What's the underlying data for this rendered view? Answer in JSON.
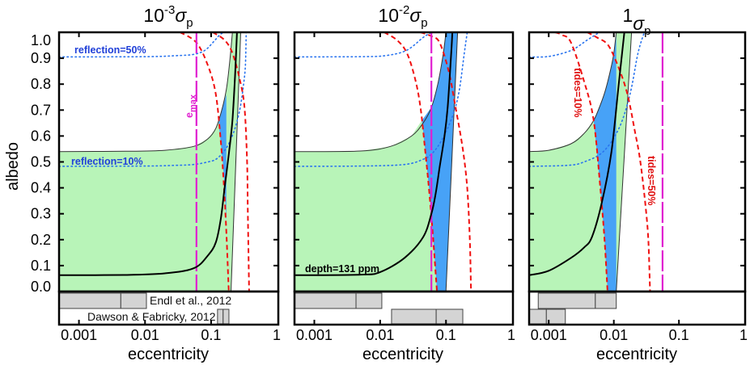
{
  "colors": {
    "green_region": "#b8f4b8",
    "blue_region": "#47a2f7",
    "tides": "#f01010",
    "reflection": "#2a74ef",
    "e_max": "#e020d0",
    "depth": "#000000",
    "bar_fill": "#d4d4d4"
  },
  "chart_data": [
    {
      "type": "line",
      "title": {
        "base": "10",
        "exp": "-3",
        "symbol": "σ",
        "sub": "p"
      },
      "xlabel": "eccentricity",
      "ylabel": "albedo",
      "xscale": "log",
      "xlim": [
        0.0005,
        1.04
      ],
      "ylim": [
        0,
        1
      ],
      "xticks": [
        0.001,
        0.01,
        0.1,
        1
      ],
      "xtick_labels": [
        "0.001",
        "0.01",
        "0.1",
        "1"
      ],
      "yticks": [
        1.0,
        0.9,
        0.8,
        0.7,
        0.6,
        0.5,
        0.4,
        0.3,
        0.2,
        0.1,
        0.0
      ],
      "ytick_labels": [
        "1.0",
        "0.9",
        "0.8",
        "0.7",
        "0.6",
        "0.5",
        "0.4",
        "0.3",
        "0.2",
        "0.1",
        "0.0"
      ],
      "green_region": [
        [
          0.0005,
          0
        ],
        [
          0.0005,
          0.54
        ],
        [
          0.005,
          0.541
        ],
        [
          0.02,
          0.545
        ],
        [
          0.055,
          0.56
        ],
        [
          0.09,
          0.59
        ],
        [
          0.118,
          0.63
        ],
        [
          0.145,
          0.7
        ],
        [
          0.17,
          0.78
        ],
        [
          0.19,
          0.88
        ],
        [
          0.21,
          1.0
        ],
        [
          0.28,
          1.0
        ],
        [
          0.2,
          0
        ]
      ],
      "blue_region": [
        [
          0.13,
          0.65
        ],
        [
          0.145,
          0.7
        ],
        [
          0.17,
          0.76
        ],
        [
          0.17,
          0.27
        ],
        [
          0.16,
          0.4
        ],
        [
          0.15,
          0.5
        ]
      ],
      "upper_bound": [
        [
          0.0005,
          0.54
        ],
        [
          0.005,
          0.541
        ],
        [
          0.02,
          0.545
        ],
        [
          0.055,
          0.56
        ],
        [
          0.09,
          0.59
        ],
        [
          0.118,
          0.63
        ],
        [
          0.145,
          0.7
        ],
        [
          0.17,
          0.78
        ],
        [
          0.19,
          0.88
        ],
        [
          0.21,
          1.0
        ]
      ],
      "right_bound": [
        [
          0.2,
          0
        ],
        [
          0.28,
          1.0
        ]
      ],
      "depth_curve": [
        [
          0.0005,
          0.063
        ],
        [
          0.005,
          0.064
        ],
        [
          0.02,
          0.07
        ],
        [
          0.055,
          0.09
        ],
        [
          0.09,
          0.14
        ],
        [
          0.118,
          0.19
        ],
        [
          0.14,
          0.28
        ],
        [
          0.16,
          0.4
        ],
        [
          0.185,
          0.53
        ],
        [
          0.21,
          0.66
        ],
        [
          0.23,
          0.83
        ],
        [
          0.246,
          1.0
        ]
      ],
      "tides_10": [
        [
          0.034,
          1.0
        ],
        [
          0.06,
          0.96
        ],
        [
          0.09,
          0.87
        ],
        [
          0.118,
          0.76
        ],
        [
          0.14,
          0.58
        ],
        [
          0.157,
          0.4
        ],
        [
          0.172,
          0.2
        ],
        [
          0.185,
          0
        ]
      ],
      "tides_50": [
        [
          0.106,
          1.0
        ],
        [
          0.16,
          0.97
        ],
        [
          0.21,
          0.92
        ],
        [
          0.27,
          0.82
        ],
        [
          0.32,
          0.71
        ],
        [
          0.35,
          0.5
        ],
        [
          0.36,
          0.29
        ],
        [
          0.376,
          0
        ]
      ],
      "reflection_50": [
        [
          0.0005,
          0.905
        ],
        [
          0.01,
          0.906
        ],
        [
          0.03,
          0.91
        ],
        [
          0.055,
          0.915
        ],
        [
          0.08,
          0.93
        ],
        [
          0.106,
          0.96
        ],
        [
          0.135,
          0.99
        ],
        [
          0.157,
          1.0
        ]
      ],
      "reflection_10": [
        [
          0.0005,
          0.483
        ],
        [
          0.01,
          0.484
        ],
        [
          0.03,
          0.487
        ],
        [
          0.055,
          0.49
        ],
        [
          0.09,
          0.5
        ],
        [
          0.118,
          0.51
        ],
        [
          0.15,
          0.535
        ],
        [
          0.185,
          0.57
        ],
        [
          0.23,
          0.63
        ],
        [
          0.276,
          0.71
        ],
        [
          0.31,
          0.8
        ],
        [
          0.33,
          0.87
        ],
        [
          0.34,
          1.0
        ]
      ],
      "e_max": 0.06,
      "annotations": {
        "reflection_50": "reflection=50%",
        "reflection_10": "reflection=10%",
        "e_max": "e",
        "e_max_sub": "max"
      },
      "bars": {
        "endl": {
          "label": "Endl et al., 2012",
          "segments": [
            [
              0.0005,
              0.0043
            ],
            [
              0.0043,
              0.0105
            ]
          ]
        },
        "dawson": {
          "label": "Dawson & Fabricky, 2012",
          "segments": [
            [
              0.125,
              0.152
            ],
            [
              0.152,
              0.186
            ]
          ]
        }
      }
    },
    {
      "type": "line",
      "title": {
        "base": "10",
        "exp": "-2",
        "symbol": "σ",
        "sub": "p"
      },
      "xlabel": "eccentricity",
      "xscale": "log",
      "xlim": [
        0.0005,
        1.04
      ],
      "ylim": [
        0,
        1
      ],
      "xticks": [
        0.001,
        0.01,
        0.1,
        1
      ],
      "xtick_labels": [
        "0.001",
        "0.01",
        "0.1",
        "1"
      ],
      "green_region": [
        [
          0.0005,
          0
        ],
        [
          0.0005,
          0.54
        ],
        [
          0.005,
          0.542
        ],
        [
          0.0145,
          0.56
        ],
        [
          0.03,
          0.6
        ],
        [
          0.043,
          0.66
        ],
        [
          0.048,
          0.55
        ],
        [
          0.055,
          0.4
        ],
        [
          0.064,
          0.2
        ],
        [
          0.073,
          0
        ]
      ],
      "blue_region": [
        [
          0.043,
          0.66
        ],
        [
          0.06,
          0.71
        ],
        [
          0.075,
          0.8
        ],
        [
          0.09,
          0.91
        ],
        [
          0.1,
          1.0
        ],
        [
          0.15,
          1.0
        ],
        [
          0.1,
          0
        ],
        [
          0.073,
          0
        ],
        [
          0.064,
          0.2
        ],
        [
          0.055,
          0.4
        ],
        [
          0.048,
          0.55
        ]
      ],
      "upper_bound": [
        [
          0.0005,
          0.54
        ],
        [
          0.005,
          0.542
        ],
        [
          0.0145,
          0.56
        ],
        [
          0.03,
          0.6
        ],
        [
          0.045,
          0.65
        ],
        [
          0.06,
          0.71
        ],
        [
          0.075,
          0.8
        ],
        [
          0.09,
          0.91
        ],
        [
          0.1,
          1.0
        ]
      ],
      "right_bound": [
        [
          0.1,
          0
        ],
        [
          0.15,
          1.0
        ]
      ],
      "depth_curve": [
        [
          0.0005,
          0.063
        ],
        [
          0.005,
          0.065
        ],
        [
          0.01,
          0.075
        ],
        [
          0.0235,
          0.13
        ],
        [
          0.045,
          0.21
        ],
        [
          0.06,
          0.3
        ],
        [
          0.07,
          0.38
        ],
        [
          0.08,
          0.48
        ],
        [
          0.095,
          0.6
        ],
        [
          0.106,
          0.71
        ],
        [
          0.12,
          0.92
        ],
        [
          0.125,
          1.0
        ]
      ],
      "tides_10": [
        [
          0.0115,
          1.0
        ],
        [
          0.018,
          0.97
        ],
        [
          0.0255,
          0.92
        ],
        [
          0.034,
          0.82
        ],
        [
          0.041,
          0.71
        ],
        [
          0.048,
          0.55
        ],
        [
          0.055,
          0.4
        ],
        [
          0.064,
          0.2
        ],
        [
          0.073,
          0
        ]
      ],
      "tides_50": [
        [
          0.041,
          1.0
        ],
        [
          0.06,
          0.985
        ],
        [
          0.08,
          0.96
        ],
        [
          0.11,
          0.85
        ],
        [
          0.14,
          0.71
        ],
        [
          0.18,
          0.55
        ],
        [
          0.21,
          0.4
        ],
        [
          0.23,
          0.2
        ],
        [
          0.24,
          0
        ]
      ],
      "reflection_50": [
        [
          0.0005,
          0.905
        ],
        [
          0.005,
          0.906
        ],
        [
          0.012,
          0.91
        ],
        [
          0.025,
          0.93
        ],
        [
          0.045,
          0.98
        ],
        [
          0.06,
          1.0
        ]
      ],
      "reflection_10": [
        [
          0.0005,
          0.483
        ],
        [
          0.005,
          0.484
        ],
        [
          0.0235,
          0.49
        ],
        [
          0.045,
          0.51
        ],
        [
          0.06,
          0.53
        ],
        [
          0.08,
          0.57
        ],
        [
          0.106,
          0.63
        ],
        [
          0.135,
          0.7
        ],
        [
          0.16,
          0.78
        ],
        [
          0.19,
          0.92
        ],
        [
          0.21,
          1.0
        ]
      ],
      "e_max": 0.06,
      "annotations": {
        "depth": "depth=131 ppm"
      },
      "bars": {
        "endl": {
          "segments": [
            [
              0.0005,
              0.0043
            ],
            [
              0.0043,
              0.0106
            ]
          ]
        },
        "dawson": {
          "segments": [
            [
              0.0149,
              0.071
            ],
            [
              0.071,
              0.18
            ]
          ]
        }
      }
    },
    {
      "type": "line",
      "title": {
        "base": "1",
        "exp": "",
        "symbol": "σ",
        "sub": "p"
      },
      "xlabel": "eccentricity",
      "xscale": "log",
      "xlim": [
        0.0005,
        1.04
      ],
      "ylim": [
        0,
        1
      ],
      "xticks": [
        0.001,
        0.01,
        0.1,
        1
      ],
      "xtick_labels": [
        "0.001",
        "0.01",
        "0.1",
        "1"
      ],
      "green_region": [
        [
          0.0005,
          0
        ],
        [
          0.0005,
          0.54
        ],
        [
          0.001,
          0.545
        ],
        [
          0.0022,
          0.57
        ],
        [
          0.0035,
          0.61
        ],
        [
          0.0049,
          0.66
        ],
        [
          0.0062,
          0.72
        ],
        [
          0.0075,
          0.78
        ],
        [
          0.009,
          0.86
        ],
        [
          0.01,
          0.92
        ],
        [
          0.0109,
          1.0
        ],
        [
          0.0187,
          1.0
        ],
        [
          0.0109,
          0
        ]
      ],
      "blue_region": [
        [
          0.0049,
          0.66
        ],
        [
          0.0062,
          0.72
        ],
        [
          0.0075,
          0.78
        ],
        [
          0.009,
          0.86
        ],
        [
          0.01,
          0.92
        ],
        [
          0.0109,
          1.0
        ],
        [
          0.0109,
          0
        ],
        [
          0.008,
          0
        ],
        [
          0.0072,
          0.2
        ],
        [
          0.0062,
          0.4
        ]
      ],
      "upper_bound": [
        [
          0.0005,
          0.54
        ],
        [
          0.001,
          0.545
        ],
        [
          0.0022,
          0.57
        ],
        [
          0.0035,
          0.61
        ],
        [
          0.0049,
          0.66
        ],
        [
          0.0062,
          0.72
        ],
        [
          0.0075,
          0.78
        ],
        [
          0.009,
          0.86
        ],
        [
          0.01,
          0.92
        ],
        [
          0.0109,
          1.0
        ]
      ],
      "right_bound": [
        [
          0.0109,
          0
        ],
        [
          0.0187,
          1.0
        ]
      ],
      "depth_curve": [
        [
          0.0005,
          0.063
        ],
        [
          0.001,
          0.08
        ],
        [
          0.0022,
          0.13
        ],
        [
          0.0035,
          0.17
        ],
        [
          0.0046,
          0.21
        ],
        [
          0.0065,
          0.34
        ],
        [
          0.0092,
          0.54
        ],
        [
          0.012,
          0.81
        ],
        [
          0.0145,
          1.0
        ]
      ],
      "tides_10": [
        [
          0.00125,
          1.0
        ],
        [
          0.0016,
          0.99
        ],
        [
          0.0022,
          0.96
        ],
        [
          0.0035,
          0.81
        ],
        [
          0.0049,
          0.66
        ],
        [
          0.0062,
          0.4
        ],
        [
          0.0072,
          0.2
        ],
        [
          0.008,
          0
        ]
      ],
      "tides_50": [
        [
          0.0039,
          1.0
        ],
        [
          0.0055,
          0.98
        ],
        [
          0.0082,
          0.95
        ],
        [
          0.012,
          0.86
        ],
        [
          0.0162,
          0.76
        ],
        [
          0.021,
          0.62
        ],
        [
          0.0256,
          0.5
        ],
        [
          0.031,
          0.32
        ],
        [
          0.034,
          0.19
        ],
        [
          0.036,
          0
        ]
      ],
      "reflection_50": [
        [
          0.0005,
          0.905
        ],
        [
          0.001,
          0.907
        ],
        [
          0.0022,
          0.93
        ],
        [
          0.0039,
          0.97
        ],
        [
          0.006,
          1.0
        ]
      ],
      "reflection_10": [
        [
          0.0005,
          0.483
        ],
        [
          0.002,
          0.487
        ],
        [
          0.0035,
          0.5
        ],
        [
          0.0069,
          0.54
        ],
        [
          0.012,
          0.63
        ],
        [
          0.0177,
          0.76
        ],
        [
          0.0235,
          0.92
        ],
        [
          0.0294,
          1.0
        ]
      ],
      "e_max": 0.056,
      "annotations": {
        "tides_10": "tides=10%",
        "tides_50": "tides=50%"
      },
      "bars": {
        "endl": {
          "segments": [
            [
              0.00069,
              0.0052
            ],
            [
              0.0052,
              0.0109
            ]
          ]
        },
        "dawson": {
          "segments": [
            [
              0.0005,
              0.00092
            ],
            [
              0.00092,
              0.0018
            ]
          ]
        }
      }
    }
  ]
}
